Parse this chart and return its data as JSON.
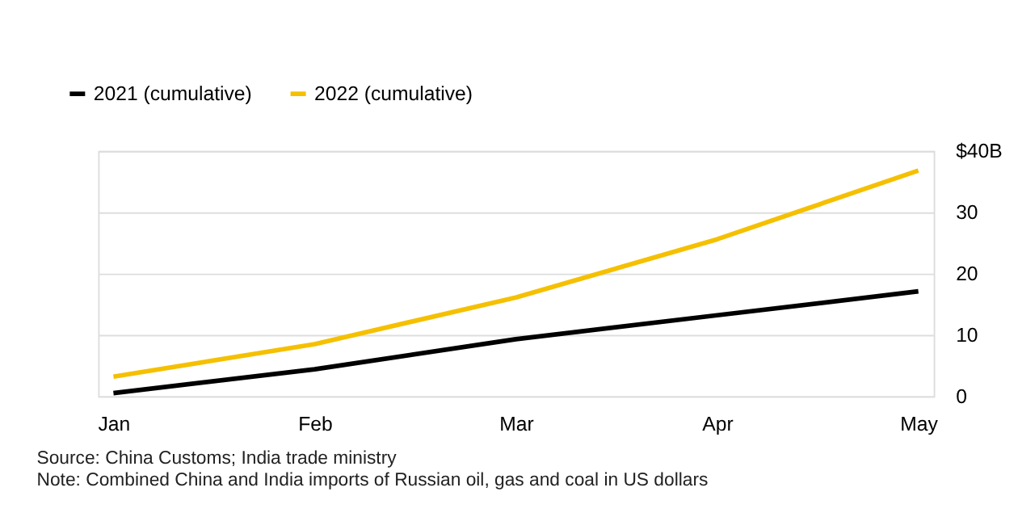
{
  "chart_data": {
    "type": "line",
    "categories": [
      "Jan",
      "Feb",
      "Mar",
      "Apr",
      "May"
    ],
    "series": [
      {
        "name": "2021 (cumulative)",
        "color": "#000000",
        "values": [
          0.5,
          4.4,
          9.3,
          13.2,
          17.1
        ]
      },
      {
        "name": "2022 (cumulative)",
        "color": "#f5c000",
        "values": [
          3.2,
          8.5,
          16.1,
          25.6,
          36.8
        ]
      }
    ],
    "ylim": [
      0,
      40
    ],
    "yticks": [
      0,
      10,
      20,
      30,
      {
        "value": 40,
        "label": "$40B"
      }
    ],
    "grid": "y",
    "legend": "top left",
    "marker": "none",
    "line_style": "solid",
    "annotations": [
      "Source: China Customs; India trade ministry",
      "Note: Combined China and India imports of Russian oil, gas and coal in US dollars"
    ]
  }
}
